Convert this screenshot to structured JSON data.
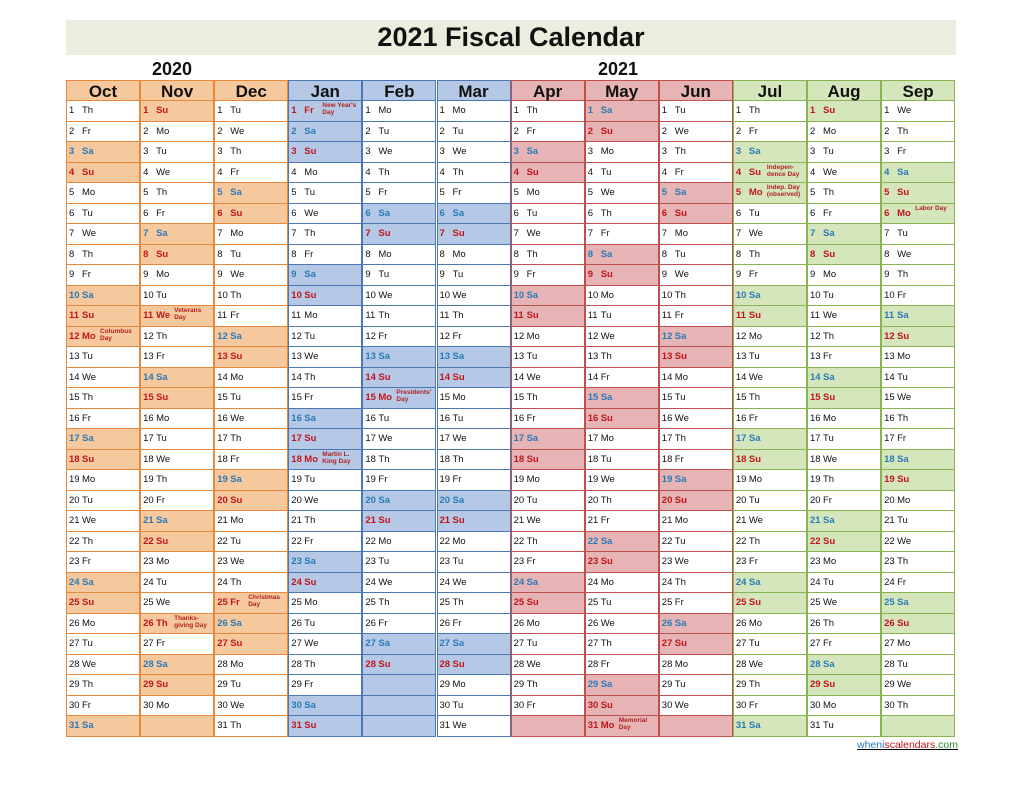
{
  "title": "2021 Fiscal Calendar",
  "year_labels": [
    "2020",
    "2021"
  ],
  "footer": {
    "part1": "wheni",
    "part2": "scalendars",
    "part3": ".com"
  },
  "colors": {
    "orange_border": "#e8883c",
    "orange_fill": "#f6c89e",
    "blue_border": "#4b78b5",
    "blue_fill": "#b5c9e6",
    "red_border": "#c0504d",
    "red_fill": "#e6b4b4",
    "green_border": "#8ab451",
    "green_fill": "#d5e6bc",
    "sunday_text": "#c0161b",
    "saturday_text": "#2a7ab8"
  },
  "months": [
    {
      "name": "Oct",
      "group": "orange",
      "start_dow": 4,
      "days": 31,
      "holidays": {
        "12": "Columbus Day"
      }
    },
    {
      "name": "Nov",
      "group": "orange",
      "start_dow": 0,
      "days": 30,
      "holidays": {
        "11": "Veterans Day",
        "26": "Thanks-giving Day"
      }
    },
    {
      "name": "Dec",
      "group": "orange",
      "start_dow": 2,
      "days": 31,
      "holidays": {
        "25": "Christmas Day"
      }
    },
    {
      "name": "Jan",
      "group": "blue",
      "start_dow": 5,
      "days": 31,
      "holidays": {
        "1": "New Year's Day",
        "18": "Martin L. King Day"
      }
    },
    {
      "name": "Feb",
      "group": "blue",
      "start_dow": 1,
      "days": 28,
      "holidays": {
        "15": "Presidents' Day"
      }
    },
    {
      "name": "Mar",
      "group": "blue",
      "start_dow": 1,
      "days": 31,
      "holidays": {}
    },
    {
      "name": "Apr",
      "group": "red",
      "start_dow": 4,
      "days": 30,
      "holidays": {}
    },
    {
      "name": "May",
      "group": "red",
      "start_dow": 6,
      "days": 31,
      "holidays": {
        "31": "Memorial Day"
      }
    },
    {
      "name": "Jun",
      "group": "red",
      "start_dow": 2,
      "days": 30,
      "holidays": {}
    },
    {
      "name": "Jul",
      "group": "green",
      "start_dow": 4,
      "days": 31,
      "holidays": {
        "4": "Indepen-dence Day",
        "5": "Indep. Day (observed)"
      }
    },
    {
      "name": "Aug",
      "group": "green",
      "start_dow": 0,
      "days": 31,
      "holidays": {}
    },
    {
      "name": "Sep",
      "group": "green",
      "start_dow": 3,
      "days": 30,
      "holidays": {
        "6": "Labor Day"
      }
    }
  ],
  "weekday_abbr": [
    "Su",
    "Mo",
    "Tu",
    "We",
    "Th",
    "Fr",
    "Sa"
  ]
}
